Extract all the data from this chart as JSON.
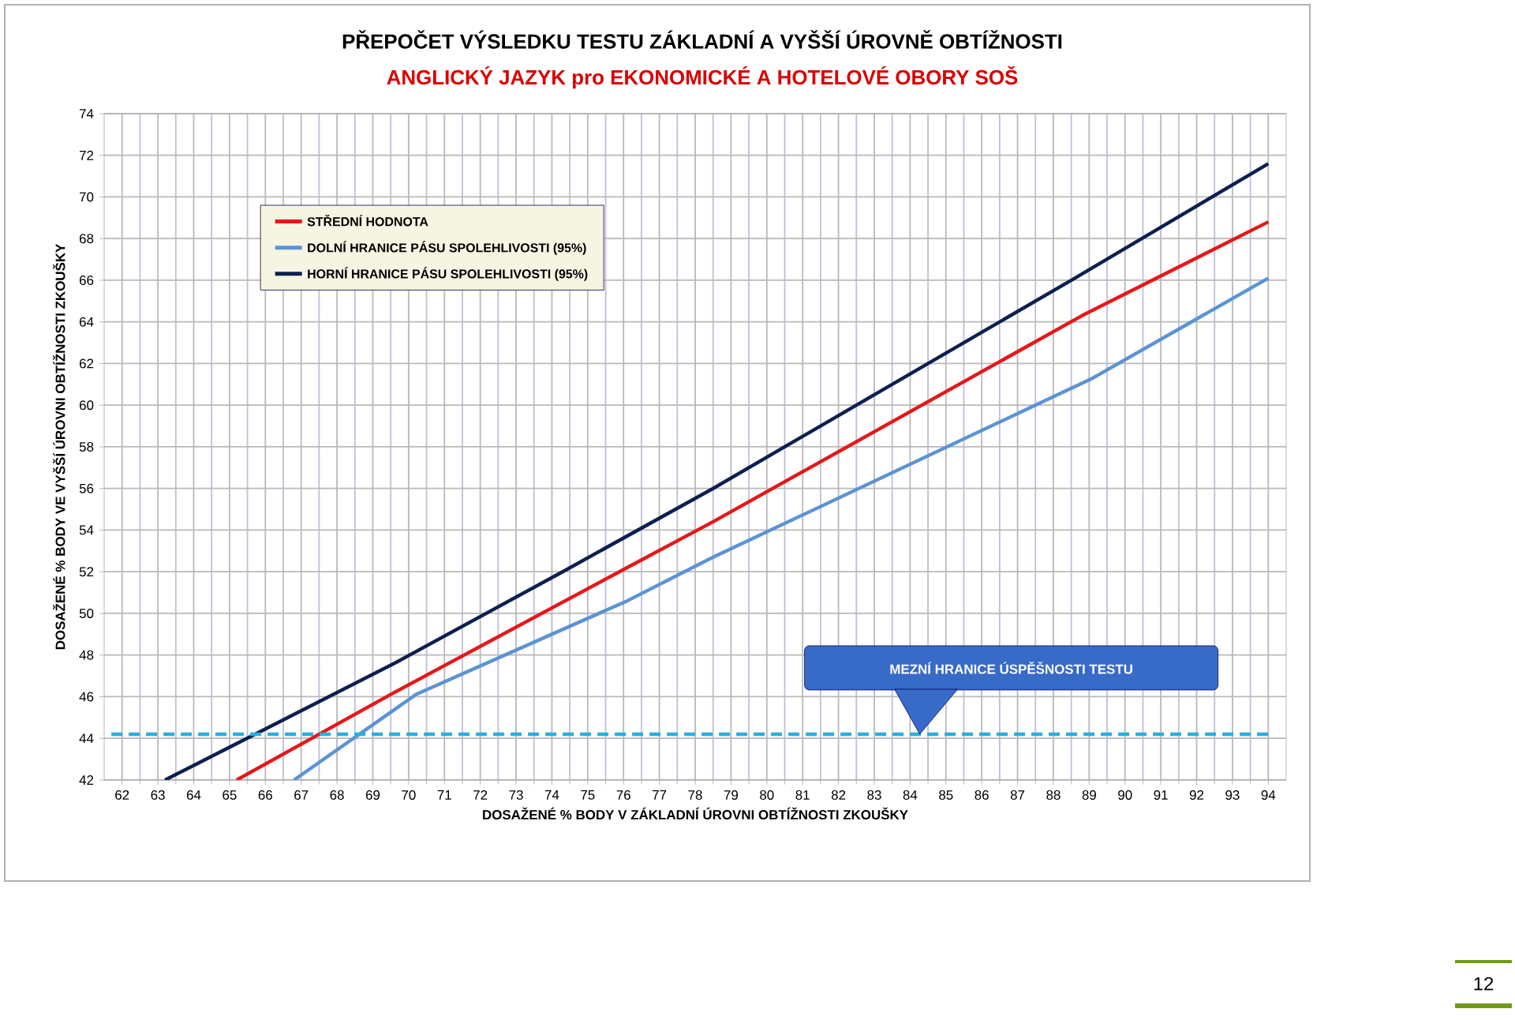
{
  "chart_data": {
    "type": "line",
    "title": "PŘEPOČET VÝSLEDKU TESTU ZÁKLADNÍ A VYŠŠÍ ÚROVNĚ OBTÍŽNOSTI",
    "subtitle": "ANGLICKÝ JAZYK pro EKONOMICKÉ A HOTELOVÉ OBORY SOŠ",
    "xlabel": "DOSAŽENÉ % BODY V ZÁKLADNÍ ÚROVNI OBTÍŽNOSTI ZKOUŠKY",
    "ylabel": "DOSAŽENÉ % BODY VE VYŠŠÍ ÚROVNI OBTÍŽNOSTI ZKOUŠKY",
    "xlim": [
      61.5,
      94.5
    ],
    "ylim": [
      42,
      74
    ],
    "xticks": [
      62,
      63,
      64,
      65,
      66,
      67,
      68,
      69,
      70,
      71,
      72,
      73,
      74,
      75,
      76,
      77,
      78,
      79,
      80,
      81,
      82,
      83,
      84,
      85,
      86,
      87,
      88,
      89,
      90,
      91,
      92,
      93,
      94
    ],
    "yticks": [
      42,
      44,
      46,
      48,
      50,
      52,
      54,
      56,
      58,
      60,
      62,
      64,
      66,
      68,
      70,
      72,
      74
    ],
    "grid": true,
    "legend": "top left",
    "marker": "none",
    "line_style": "solid",
    "series": [
      {
        "name": "STŘEDNÍ HODNOTA",
        "color": "#e3181a",
        "x": [
          65.2,
          69.6,
          76.1,
          78.5,
          88.8,
          94
        ],
        "values": [
          42,
          46.2,
          52.2,
          54.4,
          64.3,
          68.8
        ]
      },
      {
        "name": "DOLNÍ HRANICE PÁSU SPOLEHLIVOSTI (95%)",
        "color": "#5b93d5",
        "x": [
          66.8,
          70.2,
          76.1,
          78.5,
          89.1,
          94
        ],
        "values": [
          42,
          46.1,
          50.6,
          52.7,
          61.3,
          66.1
        ]
      },
      {
        "name": "HORNÍ HRANICE PÁSU SPOLEHLIVOSTI (95%)",
        "color": "#0d1f4f",
        "x": [
          63.2,
          69.6,
          74.3,
          78.5,
          88.6,
          94
        ],
        "values": [
          42,
          47.6,
          52.0,
          56.0,
          66.1,
          71.6
        ]
      }
    ],
    "ref_lines": [
      {
        "axis": "y",
        "value": 44.2,
        "color": "#26b0e0",
        "line_style": "dashed"
      }
    ],
    "annotations": [
      "12",
      "MEZNÍ HRANICE ÚSPĚŠNOSTI TESTU"
    ]
  }
}
